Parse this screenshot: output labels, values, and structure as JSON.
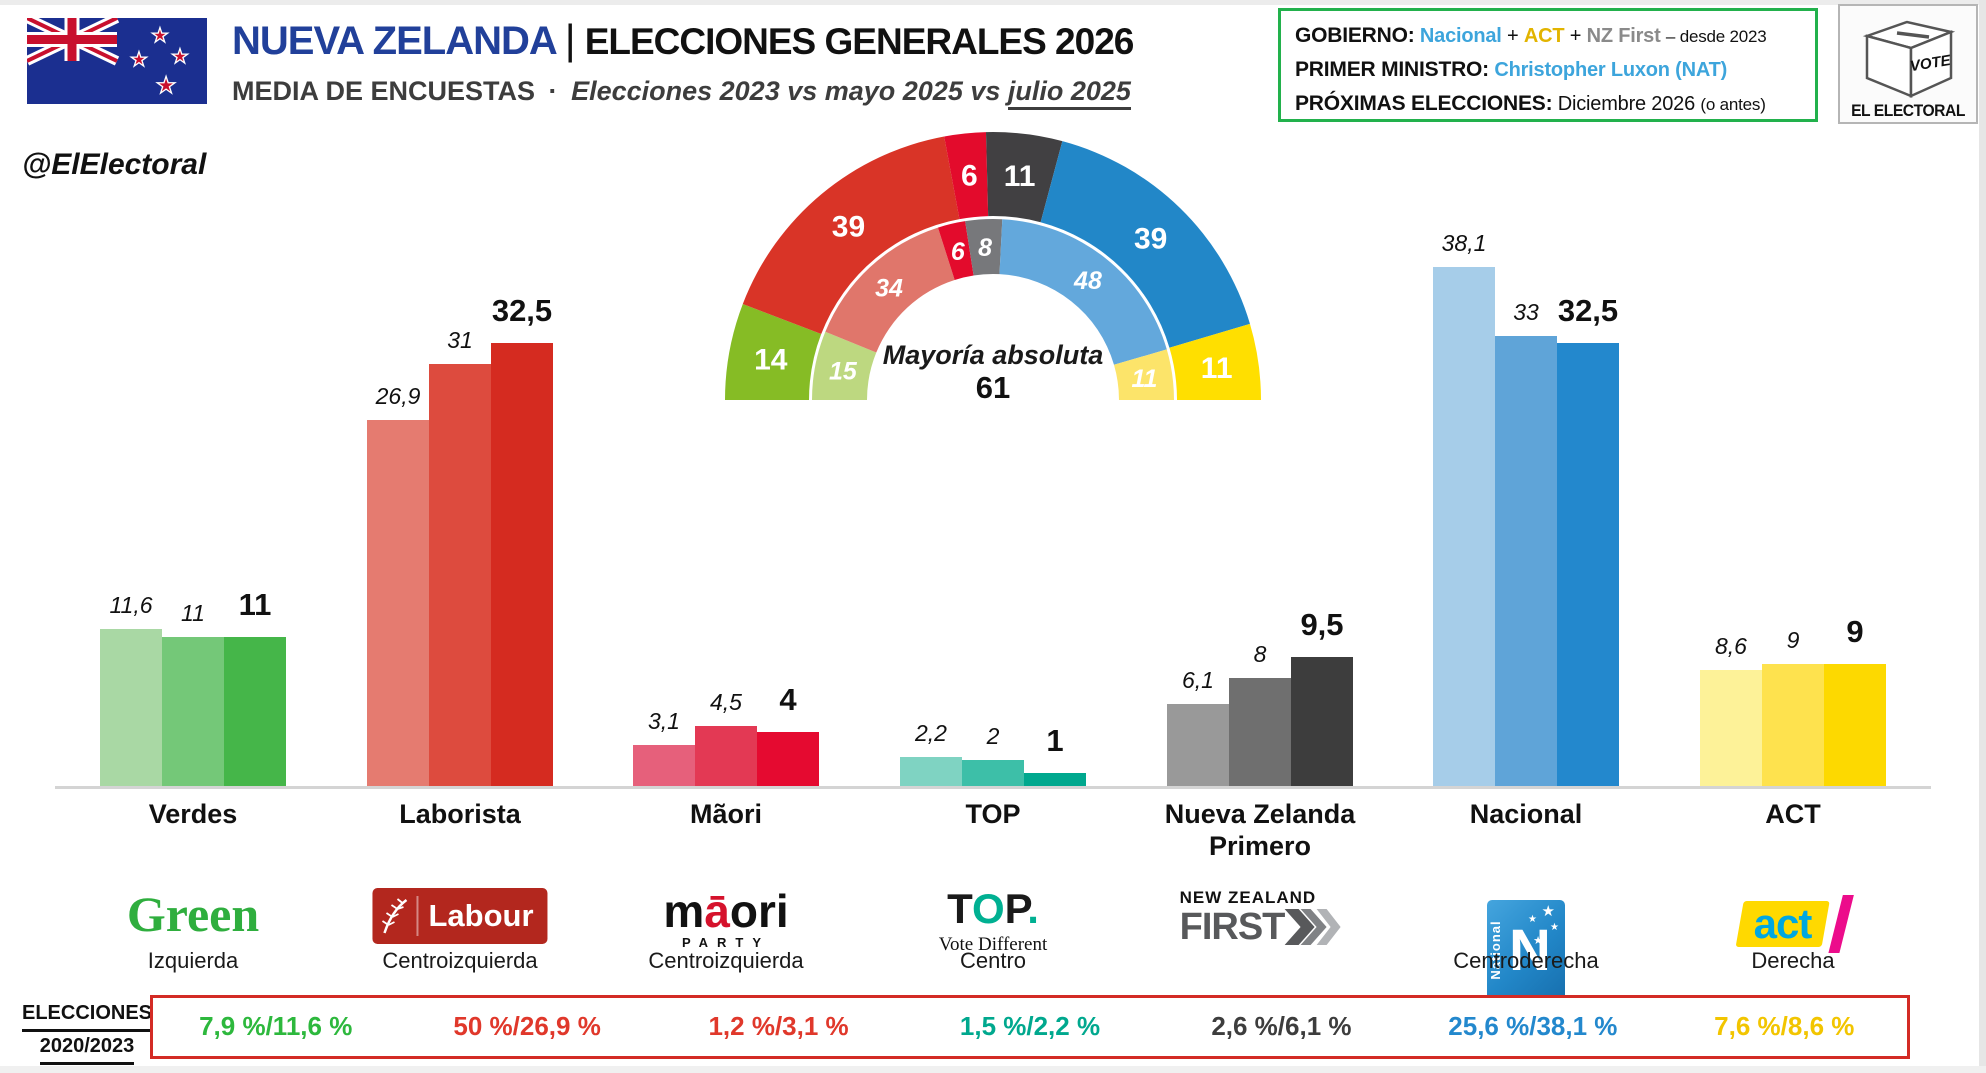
{
  "header": {
    "title_country": "NUEVA ZELANDA",
    "title_divider": "|",
    "title_event": "ELECCIONES GENERALES 2026",
    "subtitle_label": "MEDIA DE ENCUESTAS",
    "subtitle_sep": "·",
    "subtitle_compare": "Elecciones 2023 vs mayo 2025 vs",
    "subtitle_current": "julio 2025"
  },
  "social_handle": "@ElElectoral",
  "info_box": {
    "government_label": "GOBIERNO:",
    "government_party1": "Nacional",
    "government_plus1": "+",
    "government_party2": "ACT",
    "government_plus2": "+",
    "government_party3": "NZ First",
    "government_since": "– desde 2023",
    "pm_label": "PRIMER MINISTRO:",
    "pm_name": "Christopher Luxon (NAT)",
    "next_label": "PRÓXIMAS ELECCIONES:",
    "next_date": "Diciembre 2026",
    "next_note": "(o antes)"
  },
  "brand": {
    "vote": "VOTE",
    "name": "EL ELECTORAL"
  },
  "results_row": {
    "label_line1": "ELECCIONES",
    "label_line2": "2020/2023"
  },
  "logos": {
    "green_text": "Green",
    "labour_text": "Labour",
    "maori_m": "m",
    "maori_a": "ā",
    "maori_rest": "ori",
    "maori_party": "PARTY",
    "top_t": "T",
    "top_o": "O",
    "top_p": "P",
    "top_dot": ".",
    "top_sub": "Vote Different",
    "nzf_line1": "NEW ZEALAND",
    "nzf_line2": "FIRST",
    "national_vertical": "National",
    "national_n": "N",
    "act_text": "act"
  },
  "chart_data": [
    {
      "type": "hemicycle",
      "center_label": "Mayoría absoluta",
      "majority_value": "61",
      "outer_ring": {
        "total": 120,
        "segments": [
          {
            "party": "Verdes",
            "seats": 14,
            "color": "#86bc25"
          },
          {
            "party": "Laborista",
            "seats": 39,
            "color": "#d93427"
          },
          {
            "party": "Mãori",
            "seats": 6,
            "color": "#e30b2c"
          },
          {
            "party": "NZ First",
            "seats": 11,
            "color": "#414042"
          },
          {
            "party": "Nacional",
            "seats": 39,
            "color": "#2287c8"
          },
          {
            "party": "ACT",
            "seats": 11,
            "color": "#ffdf00"
          }
        ]
      },
      "inner_ring": {
        "total": 122,
        "segments": [
          {
            "party": "Verdes",
            "seats": 15,
            "color": "#bdd880"
          },
          {
            "party": "Laborista",
            "seats": 34,
            "color": "#e0766b"
          },
          {
            "party": "Mãori",
            "seats": 6,
            "color": "#e30b2c"
          },
          {
            "party": "NZ First",
            "seats": 8,
            "color": "#77787b"
          },
          {
            "party": "Nacional",
            "seats": 48,
            "color": "#63a8dc"
          },
          {
            "party": "ACT",
            "seats": 11,
            "color": "#fce46a"
          }
        ]
      }
    },
    {
      "type": "grouped-bar",
      "series": [
        "Elecciones 2023",
        "mayo 2025",
        "julio 2025"
      ],
      "unit": "%",
      "ylim": [
        0,
        40
      ],
      "grid": false,
      "groups": [
        {
          "name_lines": [
            "Verdes"
          ],
          "ideology": "Izquierda",
          "values": [
            11.6,
            11,
            11
          ],
          "labels": [
            "11,6",
            "11",
            "11"
          ],
          "colors": [
            "#a9d8a4",
            "#74c878",
            "#45b649"
          ],
          "result": "7,9 %/11,6 %",
          "result_color": "#2db83d"
        },
        {
          "name_lines": [
            "Laborista"
          ],
          "ideology": "Centroizquierda",
          "values": [
            26.9,
            31,
            32.5
          ],
          "labels": [
            "26,9",
            "31",
            "32,5"
          ],
          "colors": [
            "#e57b70",
            "#dd4b3e",
            "#d52b20"
          ],
          "result": "50 %/26,9 %",
          "result_color": "#e0382b"
        },
        {
          "name_lines": [
            "Mãori"
          ],
          "ideology": "Centroizquierda",
          "values": [
            3.1,
            4.5,
            4
          ],
          "labels": [
            "3,1",
            "4,5",
            "4"
          ],
          "colors": [
            "#e6607b",
            "#e33954",
            "#e50a30"
          ],
          "result": "1,2 %/3,1 %",
          "result_color": "#e0382b"
        },
        {
          "name_lines": [
            "TOP"
          ],
          "ideology": "Centro",
          "values": [
            2.2,
            2,
            1
          ],
          "labels": [
            "2,2",
            "2",
            "1"
          ],
          "colors": [
            "#7fd3c2",
            "#3dbfa8",
            "#00a88e"
          ],
          "result": "1,5 %/2,2 %",
          "result_color": "#00a88e"
        },
        {
          "name_lines": [
            "Nueva Zelanda",
            "Primero"
          ],
          "ideology": "",
          "values": [
            6.1,
            8,
            9.5
          ],
          "labels": [
            "6,1",
            "8",
            "9,5"
          ],
          "colors": [
            "#999999",
            "#6f6f6f",
            "#3d3d3d"
          ],
          "result": "2,6 %/6,1 %",
          "result_color": "#3d3d3d"
        },
        {
          "name_lines": [
            "Nacional"
          ],
          "ideology": "Centroderecha",
          "values": [
            38.1,
            33,
            32.5
          ],
          "labels": [
            "38,1",
            "33",
            "32,5"
          ],
          "colors": [
            "#a6cde9",
            "#5fa4d8",
            "#2388cd"
          ],
          "result": "25,6 %/38,1 %",
          "result_color": "#2388cd"
        },
        {
          "name_lines": [
            "ACT"
          ],
          "ideology": "Derecha",
          "values": [
            8.6,
            9,
            9
          ],
          "labels": [
            "8,6",
            "9",
            "9"
          ],
          "colors": [
            "#fdf298",
            "#fee24e",
            "#fdd900"
          ],
          "result": "7,6 %/8,6 %",
          "result_color": "#f2c500"
        }
      ]
    }
  ]
}
